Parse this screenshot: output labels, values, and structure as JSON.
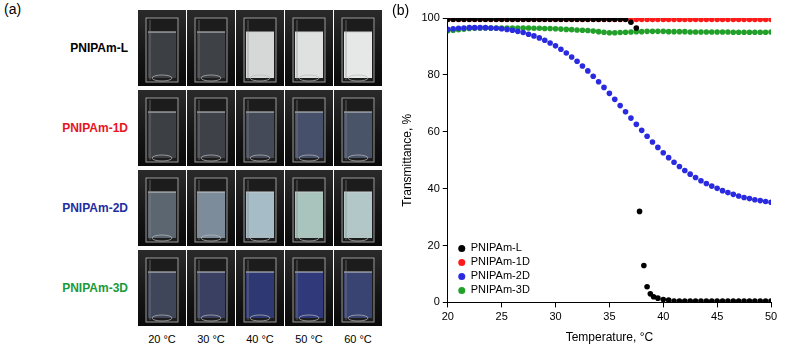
{
  "panel_a": {
    "label": "(a)",
    "temperatures": [
      "20 °C",
      "30 °C",
      "40 °C",
      "50 °C",
      "60 °C"
    ],
    "samples": [
      {
        "name": "PNIPAm-L",
        "color": "#000000",
        "colors": [
          "#3c3f44",
          "#3e4146",
          "#d6d8d8",
          "#dfe0e0",
          "#e6e7e7"
        ]
      },
      {
        "name": "PNIPAm-1D",
        "color": "#e8141e",
        "colors": [
          "#3c3f44",
          "#3e4248",
          "#444a58",
          "#46506a",
          "#4a5468"
        ]
      },
      {
        "name": "PNIPAm-2D",
        "color": "#1f2ea0",
        "colors": [
          "#5c6670",
          "#7c8c9a",
          "#a6bcc6",
          "#a8c4bc",
          "#b2c8c8"
        ]
      },
      {
        "name": "PNIPAm-3D",
        "color": "#1a9a3a",
        "colors": [
          "#40465a",
          "#3a4062",
          "#2e3872",
          "#303a7a",
          "#3a4472"
        ]
      }
    ]
  },
  "chart_data": {
    "type": "scatter",
    "label": "(b)",
    "x_label": "Temperature, °C",
    "y_label": "Transmittance, %",
    "xlim": [
      20,
      50
    ],
    "xticks": [
      20,
      25,
      30,
      35,
      40,
      45,
      50
    ],
    "ylim": [
      0,
      100
    ],
    "yticks": [
      0,
      20,
      40,
      60,
      80,
      100
    ],
    "grid": false,
    "legend": "lower left",
    "marker": "circle",
    "series": [
      {
        "name": "PNIPAm-L",
        "color": "#000000",
        "x": [
          20,
          20.5,
          21,
          21.5,
          22,
          22.5,
          23,
          23.5,
          24,
          24.5,
          25,
          25.5,
          26,
          26.5,
          27,
          27.5,
          28,
          28.5,
          29,
          29.5,
          30,
          30.5,
          31,
          31.5,
          32,
          32.5,
          33,
          33.5,
          34,
          34.5,
          35,
          35.5,
          36,
          36.5,
          37,
          37.5,
          37.8,
          38.2,
          38.5,
          38.8,
          39.1,
          39.5,
          40,
          40.5,
          41,
          41.5,
          42,
          42.5,
          43,
          43.5,
          44,
          44.5,
          45,
          45.5,
          46,
          46.5,
          47,
          47.5,
          48,
          48.5,
          49,
          49.5,
          50
        ],
        "values": [
          99.6,
          99.6,
          99.6,
          99.6,
          99.6,
          99.6,
          99.6,
          99.6,
          99.6,
          99.6,
          99.6,
          99.6,
          99.6,
          99.6,
          99.6,
          99.6,
          99.6,
          99.6,
          99.6,
          99.6,
          99.6,
          99.6,
          99.6,
          99.6,
          99.6,
          99.6,
          99.6,
          99.6,
          99.6,
          99.6,
          99.6,
          99.6,
          99.6,
          99.6,
          98.5,
          96.5,
          32,
          13,
          5.5,
          3,
          2,
          1.5,
          1,
          0.8,
          0.5,
          0.5,
          0.5,
          0.5,
          0.5,
          0.5,
          0.5,
          0.5,
          0.5,
          0.5,
          0.5,
          0.5,
          0.5,
          0.5,
          0.5,
          0.5,
          0.5,
          0.5,
          0.5
        ]
      },
      {
        "name": "PNIPAm-1D",
        "color": "#ff1a1a",
        "x": [
          20,
          20.5,
          21,
          21.5,
          22,
          22.5,
          23,
          23.5,
          24,
          24.5,
          25,
          25.5,
          26,
          26.5,
          27,
          27.5,
          28,
          28.5,
          29,
          29.5,
          30,
          30.5,
          31,
          31.5,
          32,
          32.5,
          33,
          33.5,
          34,
          34.5,
          35,
          35.5,
          36,
          36.5,
          37,
          37.5,
          38,
          38.5,
          39,
          39.5,
          40,
          40.5,
          41,
          41.5,
          42,
          42.5,
          43,
          43.5,
          44,
          44.5,
          45,
          45.5,
          46,
          46.5,
          47,
          47.5,
          48,
          48.5,
          49,
          49.5,
          50
        ],
        "values": [
          99.5,
          99.5,
          99.5,
          99.5,
          99.5,
          99.5,
          99.5,
          99.5,
          99.5,
          99.5,
          99.5,
          99.5,
          99.5,
          99.5,
          99.5,
          99.5,
          99.5,
          99.5,
          99.5,
          99.5,
          99.5,
          99.5,
          99.5,
          99.5,
          99.5,
          99.5,
          99.5,
          99.5,
          99.5,
          99.5,
          99.5,
          99.5,
          99.5,
          99.5,
          99.5,
          99.5,
          99.5,
          99.5,
          99.5,
          99.5,
          99.5,
          99.5,
          99.5,
          99.5,
          99.5,
          99.5,
          99.5,
          99.5,
          99.5,
          99.5,
          99.5,
          99.5,
          99.5,
          99.5,
          99.5,
          99.5,
          99.5,
          99.5,
          99.5,
          99.5,
          99.5
        ]
      },
      {
        "name": "PNIPAm-2D",
        "color": "#2a2ae0",
        "x": [
          20,
          20.5,
          21,
          21.5,
          22,
          22.5,
          23,
          23.5,
          24,
          24.5,
          25,
          25.5,
          26,
          26.5,
          27,
          27.5,
          28,
          28.5,
          29,
          29.5,
          30,
          30.5,
          31,
          31.5,
          32,
          32.5,
          33,
          33.5,
          34,
          34.5,
          35,
          35.5,
          36,
          36.5,
          37,
          37.5,
          38,
          38.5,
          39,
          39.5,
          40,
          40.5,
          41,
          41.5,
          42,
          42.5,
          43,
          43.5,
          44,
          44.5,
          45,
          45.5,
          46,
          46.5,
          47,
          47.5,
          48,
          48.5,
          49,
          49.5,
          50
        ],
        "values": [
          96,
          96.2,
          96.4,
          96.5,
          96.6,
          96.6,
          96.6,
          96.6,
          96.5,
          96.4,
          96.2,
          96,
          95.7,
          95.3,
          94.9,
          94.3,
          93.7,
          93,
          92.2,
          91.2,
          90.2,
          89,
          87.7,
          86.3,
          84.8,
          83.1,
          81.4,
          79.5,
          77.6,
          75.6,
          73.5,
          71.4,
          69.2,
          67,
          64.8,
          62.6,
          60.5,
          58.4,
          56.4,
          54.5,
          52.6,
          50.9,
          49.3,
          47.8,
          46.4,
          45.1,
          43.9,
          42.8,
          41.8,
          40.9,
          40.1,
          39.3,
          38.6,
          38,
          37.4,
          36.9,
          36.5,
          36.1,
          35.8,
          35.5,
          35.2
        ]
      },
      {
        "name": "PNIPAm-3D",
        "color": "#22a02a",
        "x": [
          20,
          20.5,
          21,
          21.5,
          22,
          22.5,
          23,
          23.5,
          24,
          24.5,
          25,
          25.5,
          26,
          26.5,
          27,
          27.5,
          28,
          28.5,
          29,
          29.5,
          30,
          30.5,
          31,
          31.5,
          32,
          32.5,
          33,
          33.5,
          34,
          34.5,
          35,
          35.5,
          36,
          36.5,
          37,
          37.5,
          38,
          38.5,
          39,
          39.5,
          40,
          40.5,
          41,
          41.5,
          42,
          42.5,
          43,
          43.5,
          44,
          44.5,
          45,
          45.5,
          46,
          46.5,
          47,
          47.5,
          48,
          48.5,
          49,
          49.5,
          50
        ],
        "values": [
          95.5,
          95.7,
          95.9,
          96.1,
          96.3,
          96.4,
          96.5,
          96.5,
          96.5,
          96.5,
          96.5,
          96.5,
          96.5,
          96.5,
          96.5,
          96.5,
          96.4,
          96.4,
          96.3,
          96.3,
          96.2,
          96.1,
          96,
          95.9,
          95.8,
          95.7,
          95.6,
          95.4,
          95.2,
          95,
          94.8,
          94.8,
          94.9,
          95,
          95.1,
          95.2,
          95.2,
          95.3,
          95.3,
          95.3,
          95.3,
          95.2,
          95.2,
          95.2,
          95.2,
          95.1,
          95.1,
          95.1,
          95.1,
          95.1,
          95.1,
          95.1,
          95.1,
          95,
          95,
          95,
          95,
          95,
          95,
          95,
          95.1
        ]
      }
    ]
  }
}
